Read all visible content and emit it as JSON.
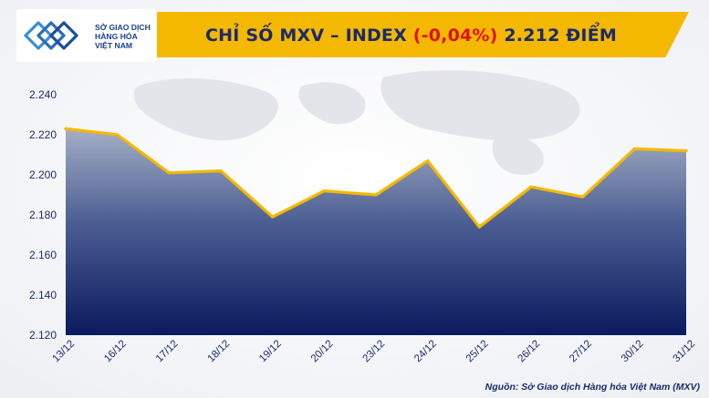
{
  "header": {
    "title_prefix": "CHỈ SỐ MXV – INDEX",
    "change": "(-0,04%)",
    "value_suffix": "2.212 ĐIỂM"
  },
  "logo": {
    "line1": "SỞ GIAO DỊCH",
    "line2": "HÀNG HÓA",
    "line3": "VIỆT NAM",
    "icon": "mxv-logo-icon"
  },
  "source_note": "Nguồn: Sở Giao dịch Hàng hóa Việt Nam (MXV)",
  "colors": {
    "header_band": "#f5b800",
    "title": "#1b2a6b",
    "change_negative": "#e01010",
    "line": "#f5b800",
    "area_top": "#9aa6c0",
    "area_bottom": "#0a1a5e"
  },
  "chart_data": {
    "type": "area",
    "categories": [
      "13/12",
      "16/12",
      "17/12",
      "18/12",
      "19/12",
      "20/12",
      "23/12",
      "24/12",
      "25/12",
      "26/12",
      "27/12",
      "30/12",
      "31/12"
    ],
    "values": [
      2223,
      2220,
      2201,
      2202,
      2179,
      2192,
      2190,
      2207,
      2174,
      2194,
      2189,
      2213,
      2212
    ],
    "ylim": [
      2120,
      2240
    ],
    "yticks": [
      "2.120",
      "2.140",
      "2.160",
      "2.180",
      "2.200",
      "2.220",
      "2.240"
    ],
    "ytick_values": [
      2120,
      2140,
      2160,
      2180,
      2200,
      2220,
      2240
    ],
    "grid": false,
    "legend": "none"
  }
}
